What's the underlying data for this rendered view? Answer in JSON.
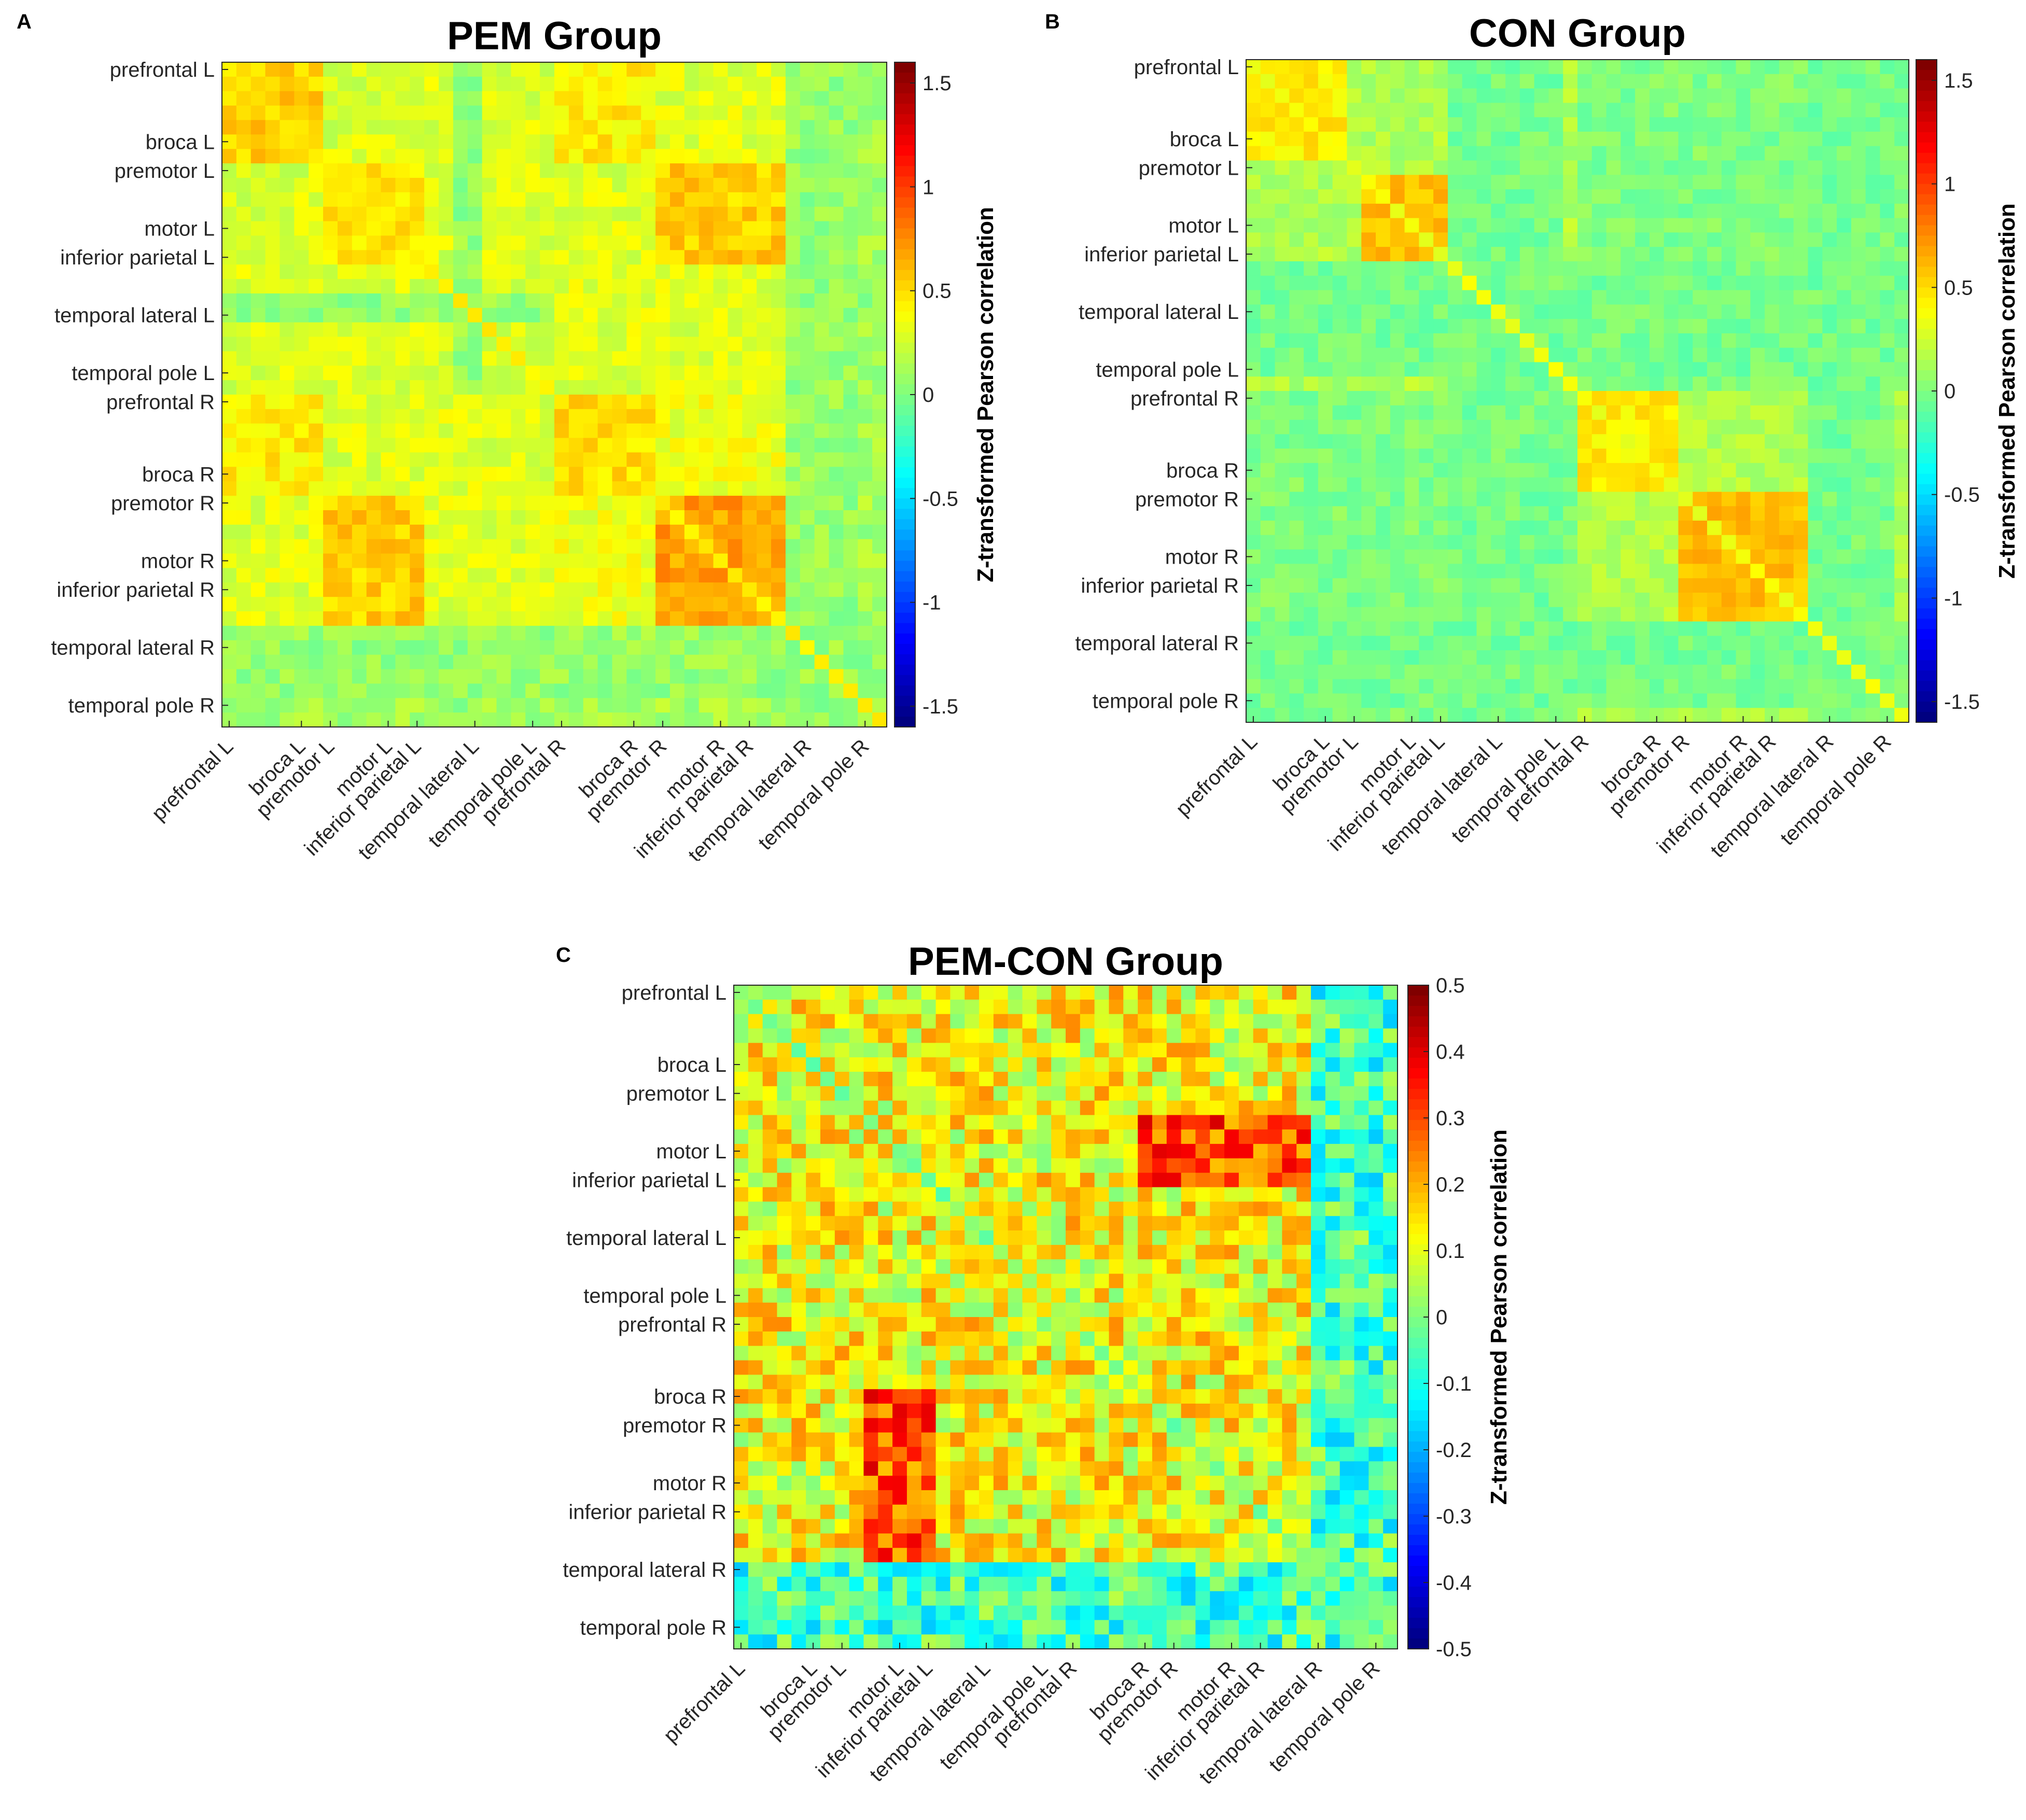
{
  "figure": {
    "panel_letters": [
      "A",
      "B",
      "C"
    ]
  },
  "region_labels": [
    "prefrontal L",
    "broca L",
    "premotor L",
    "motor L",
    "inferior parietal L",
    "temporal lateral L",
    "temporal pole L",
    "prefrontal R",
    "broca R",
    "premotor R",
    "motor R",
    "inferior parietal R",
    "temporal lateral R",
    "temporal pole R"
  ],
  "colorbar_label": "Z-transformed Pearson correlation",
  "colors": {
    "jet_low": "#00008f",
    "jet_high": "#800000",
    "axis": "#262626",
    "text": "#262626"
  },
  "chart_data": [
    {
      "type": "heatmap",
      "id": "pem",
      "title": "PEM Group",
      "panel_letter": "A",
      "n": 46,
      "clim": [
        -1.6,
        1.6
      ],
      "colorbar_ticks": [
        1.5,
        1,
        0.5,
        0,
        -0.5,
        -1,
        -1.5
      ],
      "colorbar_tick_labels": [
        "1.5",
        "1",
        "0.5",
        "0",
        "-0.5",
        "-1",
        "-1.5"
      ],
      "xlabels": [
        "prefrontal L",
        "broca L",
        "premotor L",
        "motor L",
        "inferior parietal L",
        "temporal lateral L",
        "temporal pole L",
        "prefrontal R",
        "broca R",
        "premotor R",
        "motor R",
        "inferior parietal R",
        "temporal lateral R",
        "temporal pole R"
      ],
      "ylabels": [
        "prefrontal L",
        "broca L",
        "premotor L",
        "motor L",
        "inferior parietal L",
        "temporal lateral L",
        "temporal pole L",
        "prefrontal R",
        "broca R",
        "premotor R",
        "motor R",
        "inferior parietal R",
        "temporal lateral R",
        "temporal pole R"
      ],
      "label_indices": [
        1,
        6,
        8,
        12,
        14,
        18,
        22,
        24,
        29,
        31,
        35,
        37,
        41,
        45
      ],
      "seed": 11,
      "blocks": [
        {
          "r": [
            0,
            7
          ],
          "c": [
            0,
            7
          ],
          "v": 0.55
        },
        {
          "r": [
            7,
            14
          ],
          "c": [
            7,
            14
          ],
          "v": 0.5
        },
        {
          "r": [
            8,
            14
          ],
          "c": [
            8,
            14
          ],
          "v": 0.85
        },
        {
          "r": [
            14,
            23
          ],
          "c": [
            14,
            23
          ],
          "v": 0.25
        },
        {
          "r": [
            23,
            30
          ],
          "c": [
            23,
            30
          ],
          "v": 0.5
        },
        {
          "r": [
            30,
            39
          ],
          "c": [
            30,
            39
          ],
          "v": 0.7
        },
        {
          "r": [
            7,
            14
          ],
          "c": [
            30,
            39
          ],
          "v": 0.55
        },
        {
          "r": [
            0,
            7
          ],
          "c": [
            23,
            30
          ],
          "v": 0.45
        },
        {
          "r": [
            39,
            46
          ],
          "c": [
            39,
            46
          ],
          "v": 0.15
        },
        {
          "r": [
            0,
            23
          ],
          "c": [
            0,
            23
          ],
          "v": 0.28
        },
        {
          "r": [
            23,
            39
          ],
          "c": [
            0,
            23
          ],
          "v": 0.3
        },
        {
          "r": [
            23,
            39
          ],
          "c": [
            23,
            39
          ],
          "v": 0.35
        }
      ],
      "base": 0.12,
      "noise": 0.12,
      "diag": 0.45,
      "cold_rows": [
        [
          16,
          18
        ],
        [
          39,
          44
        ]
      ],
      "cold_value": 0.02
    },
    {
      "type": "heatmap",
      "id": "con",
      "title": "CON Group",
      "panel_letter": "B",
      "n": 46,
      "clim": [
        -1.6,
        1.6
      ],
      "colorbar_ticks": [
        1.5,
        1,
        0.5,
        0,
        -0.5,
        -1,
        -1.5
      ],
      "colorbar_tick_labels": [
        "1.5",
        "1",
        "0.5",
        "0",
        "-0.5",
        "-1",
        "-1.5"
      ],
      "xlabels": [
        "prefrontal L",
        "broca L",
        "premotor L",
        "motor L",
        "inferior parietal L",
        "temporal lateral L",
        "temporal pole L",
        "prefrontal R",
        "broca R",
        "premotor R",
        "motor R",
        "inferior parietal R",
        "temporal lateral R",
        "temporal pole R"
      ],
      "ylabels": [
        "prefrontal L",
        "broca L",
        "premotor L",
        "motor L",
        "inferior parietal L",
        "temporal lateral L",
        "temporal pole L",
        "prefrontal R",
        "broca R",
        "premotor R",
        "motor R",
        "inferior parietal R",
        "temporal lateral R",
        "temporal pole R"
      ],
      "label_indices": [
        1,
        6,
        8,
        12,
        14,
        18,
        22,
        24,
        29,
        31,
        35,
        37,
        41,
        45
      ],
      "seed": 23,
      "blocks": [
        {
          "r": [
            0,
            7
          ],
          "c": [
            0,
            7
          ],
          "v": 0.45
        },
        {
          "r": [
            8,
            14
          ],
          "c": [
            8,
            14
          ],
          "v": 0.6
        },
        {
          "r": [
            14,
            23
          ],
          "c": [
            14,
            23
          ],
          "v": 0.2
        },
        {
          "r": [
            23,
            30
          ],
          "c": [
            23,
            30
          ],
          "v": 0.45
        },
        {
          "r": [
            30,
            39
          ],
          "c": [
            30,
            39
          ],
          "v": 0.6
        },
        {
          "r": [
            39,
            46
          ],
          "c": [
            39,
            46
          ],
          "v": 0.2
        },
        {
          "r": [
            0,
            23
          ],
          "c": [
            0,
            23
          ],
          "v": 0.15
        },
        {
          "r": [
            23,
            46
          ],
          "c": [
            23,
            46
          ],
          "v": 0.15
        }
      ],
      "base": 0.0,
      "noise": 0.1,
      "diag": 0.35,
      "cold_rows": [
        [
          14,
          22
        ],
        [
          39,
          45
        ]
      ],
      "cold_value": -0.08
    },
    {
      "type": "heatmap",
      "id": "diff",
      "title": "PEM-CON Group",
      "panel_letter": "C",
      "n": 46,
      "clim": [
        -0.5,
        0.5
      ],
      "colorbar_ticks": [
        0.5,
        0.4,
        0.3,
        0.2,
        0.1,
        0,
        -0.1,
        -0.2,
        -0.3,
        -0.4,
        -0.5
      ],
      "colorbar_tick_labels": [
        "0.5",
        "0.4",
        "0.3",
        "0.2",
        "0.1",
        "0",
        "-0.1",
        "-0.2",
        "-0.3",
        "-0.4",
        "-0.5"
      ],
      "xlabels": [
        "prefrontal L",
        "broca L",
        "premotor L",
        "motor L",
        "inferior parietal L",
        "temporal lateral L",
        "temporal pole L",
        "prefrontal R",
        "broca R",
        "premotor R",
        "motor R",
        "inferior parietal R",
        "temporal lateral R",
        "temporal pole R"
      ],
      "ylabels": [
        "prefrontal L",
        "broca L",
        "premotor L",
        "motor L",
        "inferior parietal L",
        "temporal lateral L",
        "temporal pole L",
        "prefrontal R",
        "broca R",
        "premotor R",
        "motor R",
        "inferior parietal R",
        "temporal lateral R",
        "temporal pole R"
      ],
      "label_indices": [
        1,
        6,
        8,
        12,
        14,
        18,
        22,
        24,
        29,
        31,
        35,
        37,
        41,
        45
      ],
      "seed": 37,
      "blocks": [
        {
          "r": [
            9,
            14
          ],
          "c": [
            28,
            40
          ],
          "v": 0.3
        },
        {
          "r": [
            28,
            40
          ],
          "c": [
            9,
            14
          ],
          "v": 0.3
        },
        {
          "r": [
            0,
            46
          ],
          "c": [
            9,
            12
          ],
          "v": 0.12
        },
        {
          "r": [
            9,
            12
          ],
          "c": [
            0,
            46
          ],
          "v": 0.12
        }
      ],
      "base": 0.12,
      "noise": 0.12,
      "diag": 0.0,
      "cold_rows": [
        [
          40,
          46
        ]
      ],
      "cold_value": -0.06
    }
  ]
}
